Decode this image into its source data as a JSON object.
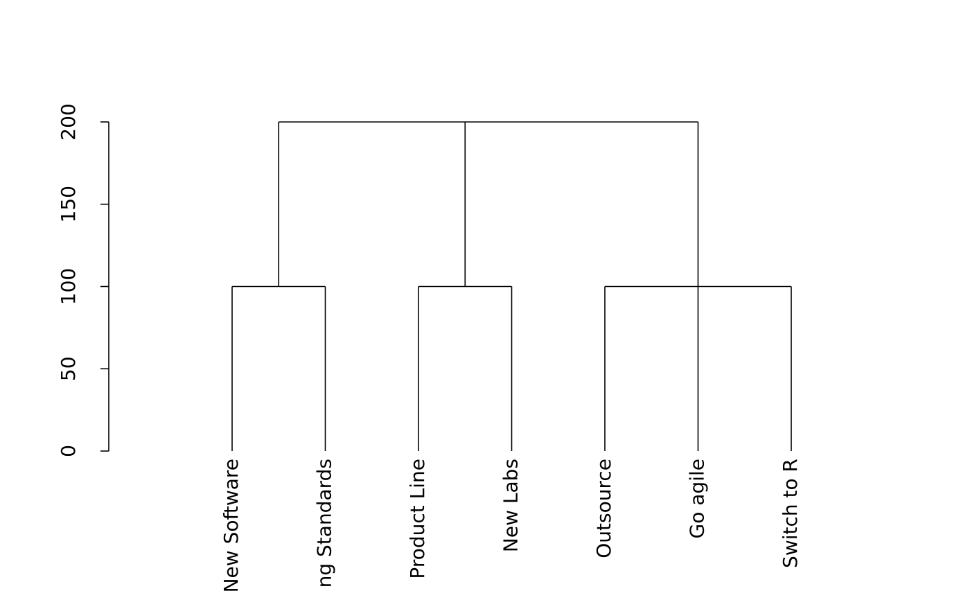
{
  "chart_data": {
    "type": "dendrogram",
    "ylim": [
      0,
      200
    ],
    "yticks": [
      0,
      50,
      100,
      150,
      200
    ],
    "tree": {
      "height": 200,
      "children": [
        {
          "height": 100,
          "children": [
            {
              "label": "New Software"
            },
            {
              "label": "ng Standards"
            }
          ]
        },
        {
          "height": 100,
          "children": [
            {
              "label": "Product Line"
            },
            {
              "label": "New Labs"
            }
          ]
        },
        {
          "height": 100,
          "children": [
            {
              "label": "Outsource"
            },
            {
              "label": "Go agile"
            },
            {
              "label": "Switch to R"
            }
          ]
        }
      ]
    }
  }
}
